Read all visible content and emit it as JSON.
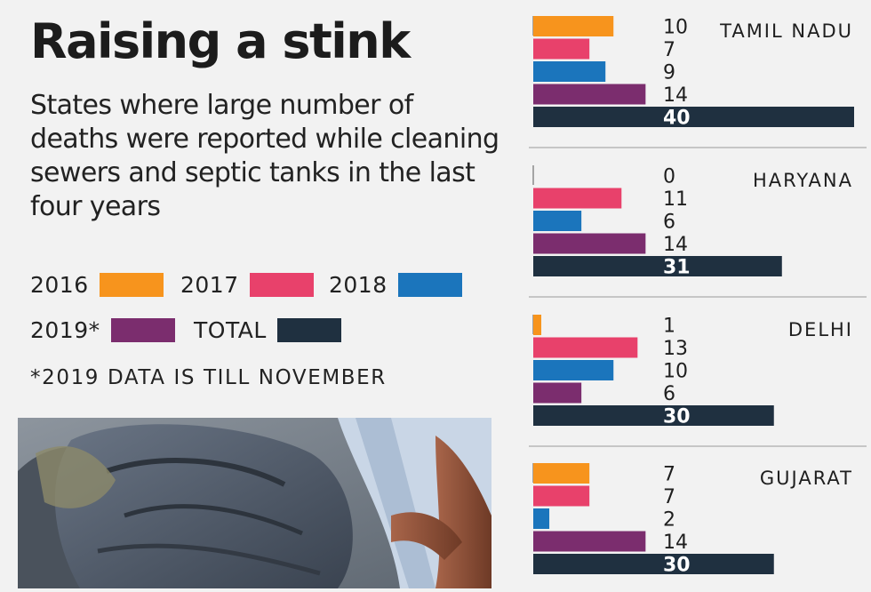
{
  "title": "Raising a stink",
  "subtitle": "States where large number of deaths were reported while cleaning sewers and septic tanks in the last four years",
  "footnote": "*2019 DATA IS TILL NOVEMBER",
  "legend": [
    {
      "label": "2016",
      "color": "#f7941d"
    },
    {
      "label": "2017",
      "color": "#e8416b"
    },
    {
      "label": "2018",
      "color": "#1b75bc"
    },
    {
      "label": "2019*",
      "color": "#7b2d6e"
    },
    {
      "label": "TOTAL",
      "color": "#1f3040"
    }
  ],
  "photo": {
    "icon": "sewer-worker-photo"
  },
  "chart_data": {
    "type": "bar",
    "orientation": "horizontal",
    "series_names": [
      "2016",
      "2017",
      "2018",
      "2019*",
      "TOTAL"
    ],
    "colors": [
      "#f7941d",
      "#e8416b",
      "#1b75bc",
      "#7b2d6e",
      "#1f3040"
    ],
    "xlim": [
      0,
      40
    ],
    "grid": false,
    "groups": [
      {
        "name": "TAMIL NADU",
        "values": [
          10,
          7,
          9,
          14,
          40
        ]
      },
      {
        "name": "HARYANA",
        "values": [
          0,
          11,
          6,
          14,
          31
        ]
      },
      {
        "name": "DELHI",
        "values": [
          1,
          13,
          10,
          6,
          30
        ]
      },
      {
        "name": "GUJARAT",
        "values": [
          7,
          7,
          2,
          14,
          30
        ]
      }
    ]
  }
}
